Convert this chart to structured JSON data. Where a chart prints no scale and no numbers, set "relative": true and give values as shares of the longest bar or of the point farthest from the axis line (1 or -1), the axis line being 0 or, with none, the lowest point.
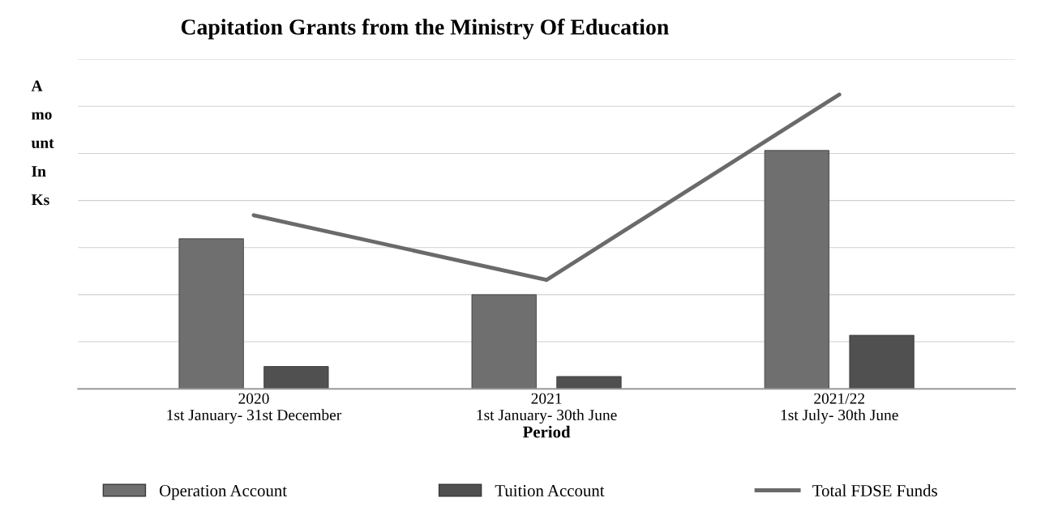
{
  "chart_data": {
    "type": "bar",
    "title": "Capitation Grants from the Ministry Of Education",
    "xlabel": "Period",
    "ylabel": "A\nmo\nunt\nIn\nKs",
    "categories": [
      "2020\n1st January- 31st December",
      "2021\n1st January- 30th June",
      "2021/22\n1st July- 30th June"
    ],
    "relative": true,
    "grid": "y",
    "legend": "bottom",
    "series": [
      {
        "name": "Operation Account",
        "color": "#6f6f6f",
        "values": [
          0.51,
          0.32,
          0.81
        ]
      },
      {
        "name": "Tuition Account",
        "color": "#505050",
        "values": [
          0.076,
          0.042,
          0.182
        ]
      },
      {
        "name": "Total FDSE Funds",
        "type": "line",
        "color": "#6a6a6a",
        "values": [
          0.59,
          0.37,
          1.0
        ]
      }
    ]
  }
}
